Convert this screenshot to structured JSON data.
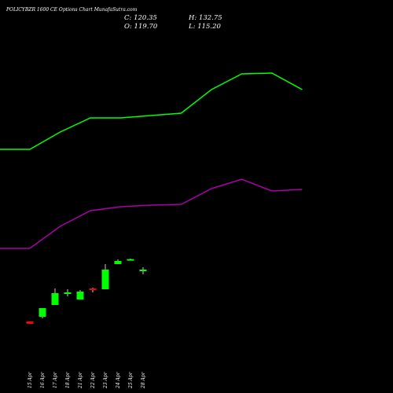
{
  "header": {
    "title": "POLICYBZR 1600 CE Options Chart MunafaSutra.com",
    "close": "C: 120.35",
    "open": "O: 119.70",
    "high": "H: 132.75",
    "low": "L: 115.20"
  },
  "colors": {
    "background": "#000000",
    "bullish": "#00ff00",
    "bearish": "#ff0000",
    "upper_band": "#00ff00",
    "lower_band": "#aa00aa"
  },
  "chart_data": {
    "type": "candlestick",
    "categories": [
      "15 Apr",
      "16 Apr",
      "17 Apr",
      "18 Apr",
      "21 Apr",
      "22 Apr",
      "23 Apr",
      "24 Apr",
      "25 Apr",
      "28 Apr"
    ],
    "candles": [
      {
        "open": 41.0,
        "high": 41.0,
        "low": 38.0,
        "close": 38.0
      },
      {
        "open": 47.0,
        "high": 58.0,
        "low": 45.0,
        "close": 58.0
      },
      {
        "open": 62.0,
        "high": 83.0,
        "low": 62.0,
        "close": 77.0
      },
      {
        "open": 77.0,
        "high": 82.0,
        "low": 73.0,
        "close": 78.0
      },
      {
        "open": 69.0,
        "high": 81.0,
        "low": 69.0,
        "close": 79.0
      },
      {
        "open": 83.0,
        "high": 84.0,
        "low": 78.0,
        "close": 81.0
      },
      {
        "open": 82.0,
        "high": 114.0,
        "low": 82.0,
        "close": 107.0
      },
      {
        "open": 114.0,
        "high": 120.0,
        "low": 114.0,
        "close": 118.0
      },
      {
        "open": 120.35,
        "high": 121.0,
        "low": 120.0,
        "close": 120.35
      },
      {
        "open": 106.0,
        "high": 110.0,
        "low": 101.0,
        "close": 107.0
      }
    ],
    "series": [
      {
        "name": "",
        "color": "#00ff00",
        "x": [
          -1,
          0,
          1,
          2,
          3,
          4,
          5,
          6,
          7,
          8,
          9
        ],
        "values": [
          260,
          260,
          282,
          300,
          300,
          303,
          306,
          336,
          356,
          357,
          336
        ]
      },
      {
        "name": "",
        "color": "#aa00aa",
        "x": [
          -1,
          0,
          1,
          2,
          3,
          4,
          5,
          6,
          7,
          8,
          9
        ],
        "values": [
          134,
          134,
          162,
          182,
          187,
          189,
          190,
          210,
          222,
          207,
          209
        ]
      }
    ],
    "ylim": [
      0,
      420
    ],
    "grid": false
  }
}
